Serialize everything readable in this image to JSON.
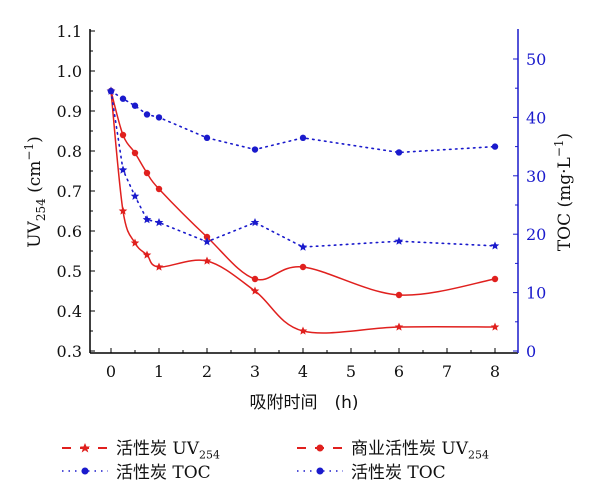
{
  "chart_data": {
    "type": "line",
    "x": [
      0,
      0.25,
      0.5,
      0.75,
      1,
      2,
      3,
      4,
      6,
      8
    ],
    "xlabel": "吸附时间　(h)",
    "ylabel_left": {
      "main": "UV",
      "sub": "254",
      "unit": " (cm",
      "sup": "−1",
      "close": ")"
    },
    "ylabel_right": {
      "main": "TOC (mg·L",
      "sup": "−1",
      "close": ")"
    },
    "xlim": [
      0,
      8
    ],
    "xticks": [
      0,
      1,
      2,
      3,
      4,
      5,
      6,
      7,
      8
    ],
    "ylim_left": [
      0.3,
      1.1
    ],
    "yticks_left": [
      "0.3",
      "0.4",
      "0.5",
      "0.6",
      "0.7",
      "0.8",
      "0.9",
      "1.0",
      "1.1"
    ],
    "ylim_right": [
      0,
      50
    ],
    "yticks_right": [
      "0",
      "10",
      "20",
      "30",
      "40",
      "50"
    ],
    "grid": false,
    "legend_position": "bottom",
    "series": [
      {
        "name": "活性炭  UV",
        "sub": "254",
        "axis": "left",
        "marker": "star",
        "color": "#e0201e",
        "style": "solid-fit",
        "values": [
          0.95,
          0.65,
          0.57,
          0.54,
          0.51,
          0.525,
          0.45,
          0.35,
          0.36,
          0.36
        ]
      },
      {
        "name": "商业活性炭 UV",
        "sub": "254",
        "axis": "left",
        "marker": "circle",
        "color": "#e0201e",
        "style": "solid-fit",
        "values": [
          0.95,
          0.84,
          0.795,
          0.745,
          0.705,
          0.585,
          0.48,
          0.51,
          0.44,
          0.48
        ]
      },
      {
        "name": "活性炭  TOC",
        "sub": "",
        "axis": "right",
        "marker": "star",
        "color": "#1a1acc",
        "style": "dotted",
        "values": [
          44.5,
          31,
          26.5,
          22.5,
          22,
          18.7,
          22,
          17.8,
          18.8,
          18
        ]
      },
      {
        "name": "活性炭 TOC",
        "sub": "",
        "axis": "right",
        "marker": "circle",
        "color": "#1a1acc",
        "style": "dotted",
        "values": [
          44.5,
          43.2,
          42,
          40.5,
          40,
          36.5,
          34.5,
          36.5,
          34,
          35
        ]
      }
    ]
  }
}
